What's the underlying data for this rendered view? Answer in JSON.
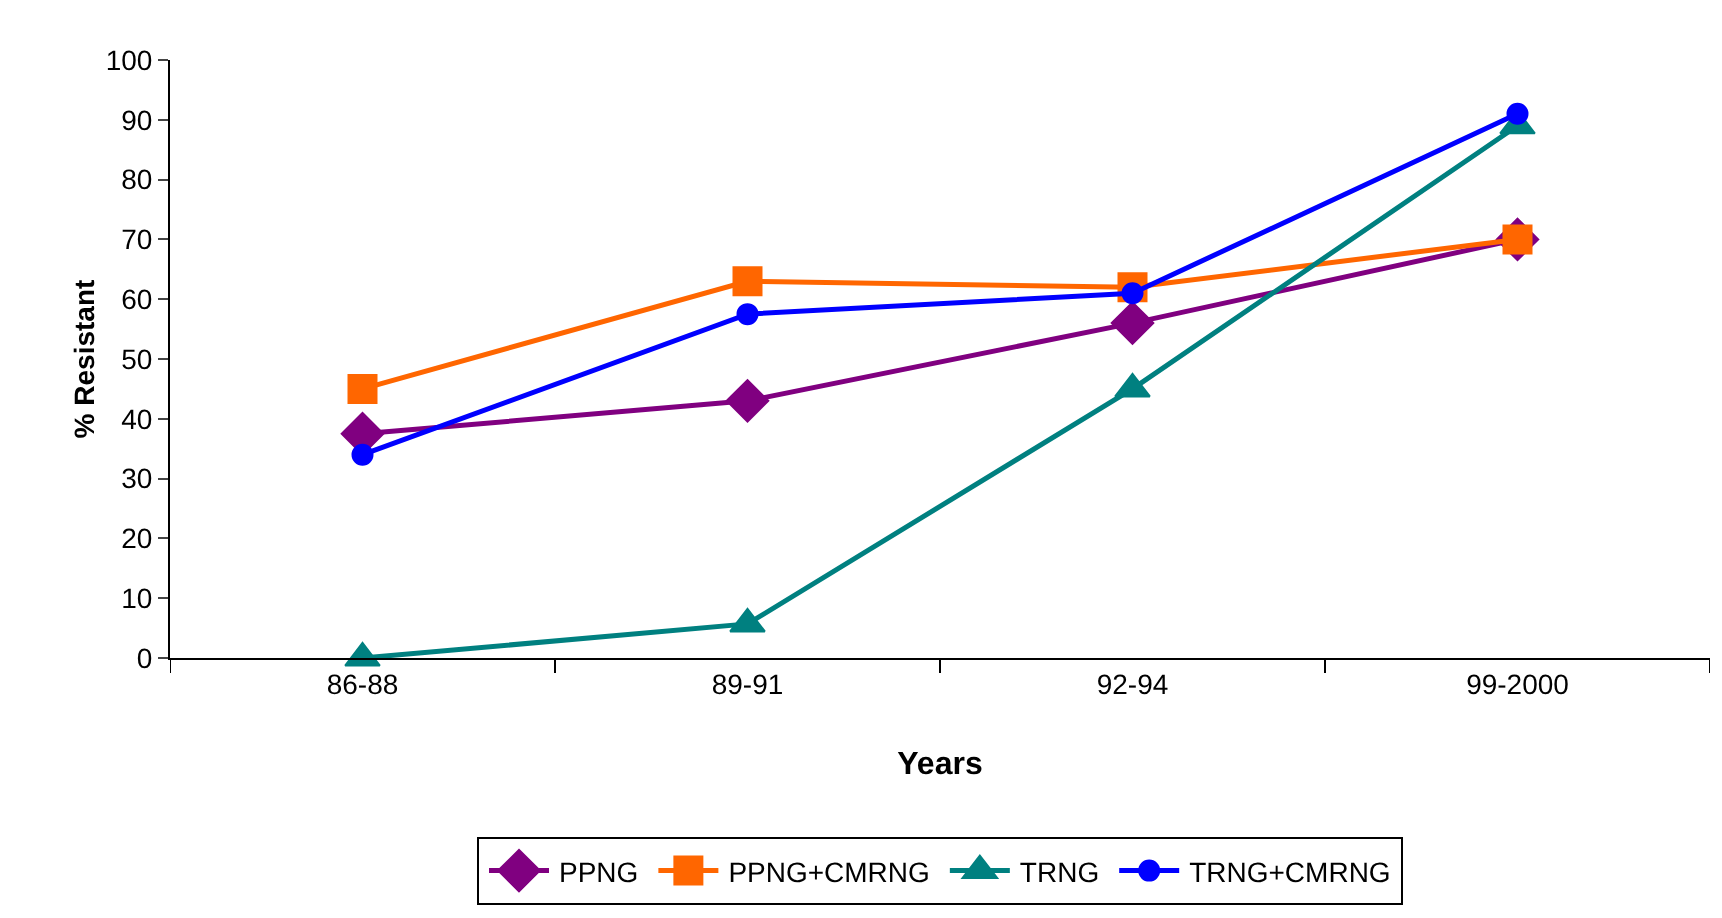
{
  "chart_data": {
    "type": "line",
    "xlabel": "Years",
    "ylabel": "% Resistant",
    "categories": [
      "86-88",
      "89-91",
      "92-94",
      "99-2000"
    ],
    "ylim": [
      0,
      100
    ],
    "yticks": [
      0,
      10,
      20,
      30,
      40,
      50,
      60,
      70,
      80,
      90,
      100
    ],
    "grid": false,
    "legend": "bottom",
    "line_style": "solid",
    "series": [
      {
        "name": "PPNG",
        "color": "#800080",
        "marker": "diamond",
        "values": [
          37.5,
          43,
          56,
          70
        ]
      },
      {
        "name": "PPNG+CMRNG",
        "color": "#ff6600",
        "marker": "square",
        "values": [
          45,
          63,
          62,
          70
        ]
      },
      {
        "name": "TRNG",
        "color": "#008080",
        "marker": "triangle",
        "values": [
          0,
          5.7,
          45,
          89
        ]
      },
      {
        "name": "TRNG+CMRNG",
        "color": "#0000ff",
        "marker": "circle",
        "values": [
          34,
          57.5,
          61,
          91
        ]
      }
    ]
  }
}
